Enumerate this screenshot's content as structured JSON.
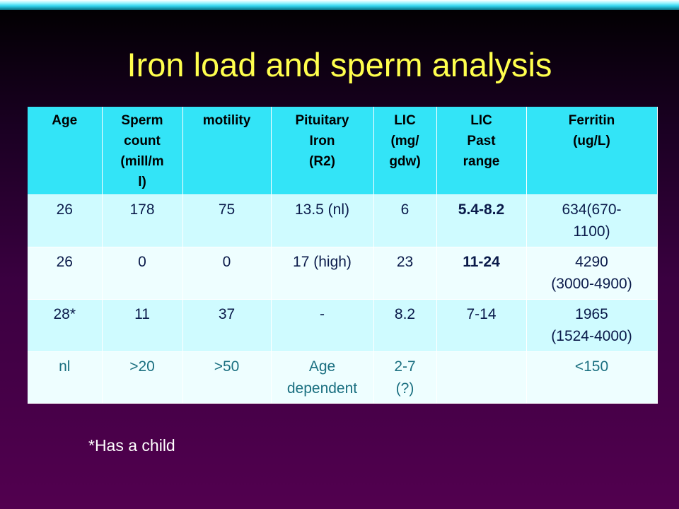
{
  "slide": {
    "title": "Iron load and sperm analysis",
    "footnote": "*Has a child"
  },
  "table": {
    "headers": [
      [
        "Age"
      ],
      [
        "Sperm",
        "count",
        "(mill/m",
        "l)"
      ],
      [
        "motility"
      ],
      [
        "Pituitary",
        "Iron",
        "(R2)"
      ],
      [
        "LIC",
        "(mg/",
        "gdw)"
      ],
      [
        "LIC",
        "Past",
        "range"
      ],
      [
        "Ferritin",
        "(ug/L)"
      ]
    ],
    "rows": [
      [
        "26",
        "178",
        "75",
        "13.5 (nl)",
        "6",
        "5.4-8.2",
        "634(670-\n1100)"
      ],
      [
        "26",
        "0",
        "0",
        "17 (high)",
        "23",
        "11-24",
        "4290\n(3000-4900)"
      ],
      [
        "28*",
        "11",
        "37",
        "-",
        "8.2",
        "7-14",
        "1965\n(1524-4000)"
      ],
      [
        "nl",
        ">20",
        ">50",
        "Age\ndependent",
        "2-7\n(?)",
        "",
        "<150"
      ]
    ],
    "colors": {
      "header_bg": "#33e4f7",
      "row_even_bg": "#cffbff",
      "row_odd_bg": "#eefeff",
      "title_color": "#ffff4d"
    }
  }
}
